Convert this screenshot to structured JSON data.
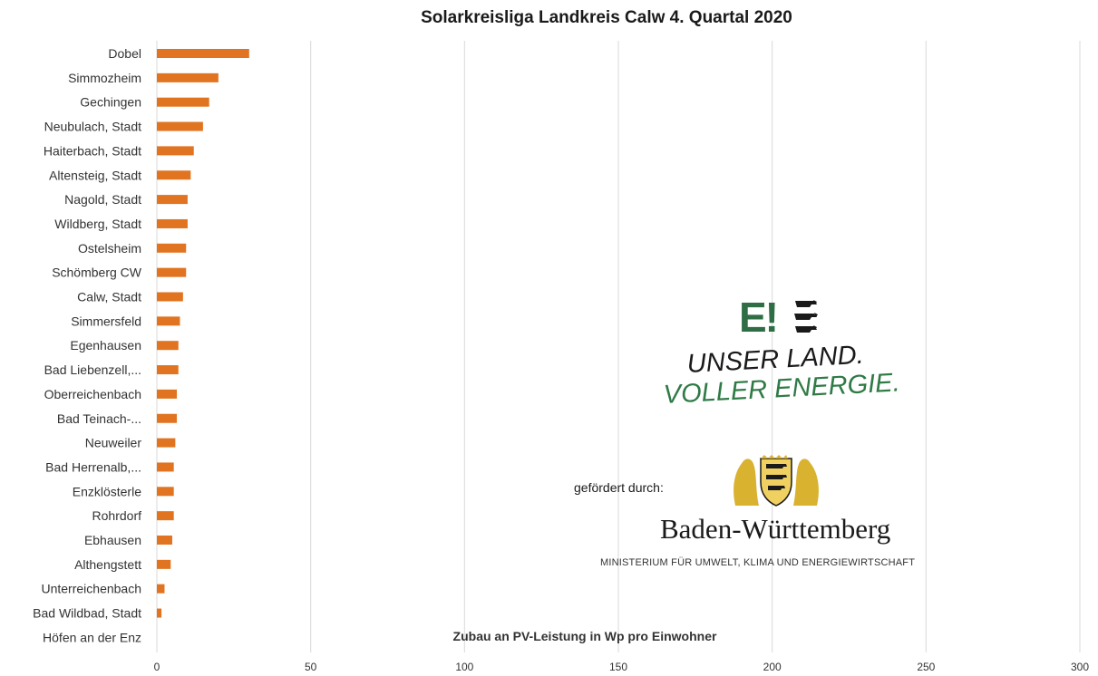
{
  "chart_data": {
    "type": "bar",
    "orientation": "horizontal",
    "title": "Solarkreisliga Landkreis Calw 4. Quartal 2020",
    "xlabel": "Zubau an PV-Leistung in Wp pro Einwohner",
    "ylabel": "",
    "xlim": [
      0,
      300
    ],
    "xticks": [
      0,
      50,
      100,
      150,
      200,
      250,
      300
    ],
    "grid": true,
    "bar_color": "#e07420",
    "categories": [
      "Dobel",
      "Simmozheim",
      "Gechingen",
      "Neubulach, Stadt",
      "Haiterbach, Stadt",
      "Altensteig, Stadt",
      "Nagold, Stadt",
      "Wildberg, Stadt",
      "Ostelsheim",
      "Schömberg CW",
      "Calw, Stadt",
      "Simmersfeld",
      "Egenhausen",
      "Bad Liebenzell,...",
      "Oberreichenbach",
      "Bad Teinach-...",
      "Neuweiler",
      "Bad Herrenalb,...",
      "Enzklösterle",
      "Rohrdorf",
      "Ebhausen",
      "Althengstett",
      "Unterreichenbach",
      "Bad Wildbad, Stadt",
      "Höfen an der Enz"
    ],
    "values": [
      30,
      20,
      17,
      15,
      12,
      11,
      10,
      10,
      9.5,
      9.5,
      8.5,
      7.5,
      7,
      7,
      6.5,
      6.5,
      6,
      5.5,
      5.5,
      5.5,
      5,
      4.5,
      2.5,
      1.5,
      0
    ]
  },
  "logos": {
    "energy_mark": "E!",
    "slogan_line1": "UNSER LAND.",
    "slogan_line2": "VOLLER ENERGIE.",
    "funded_by": "gefördert durch:",
    "state_name": "Baden-Württemberg",
    "ministry": "MINISTERIUM FÜR UMWELT, KLIMA UND ENERGIEWIRTSCHAFT"
  },
  "colors": {
    "bar": "#e07420",
    "grid": "#d9d9d9",
    "logo_green": "#2f6e45",
    "coat_gold": "#d9b230"
  }
}
